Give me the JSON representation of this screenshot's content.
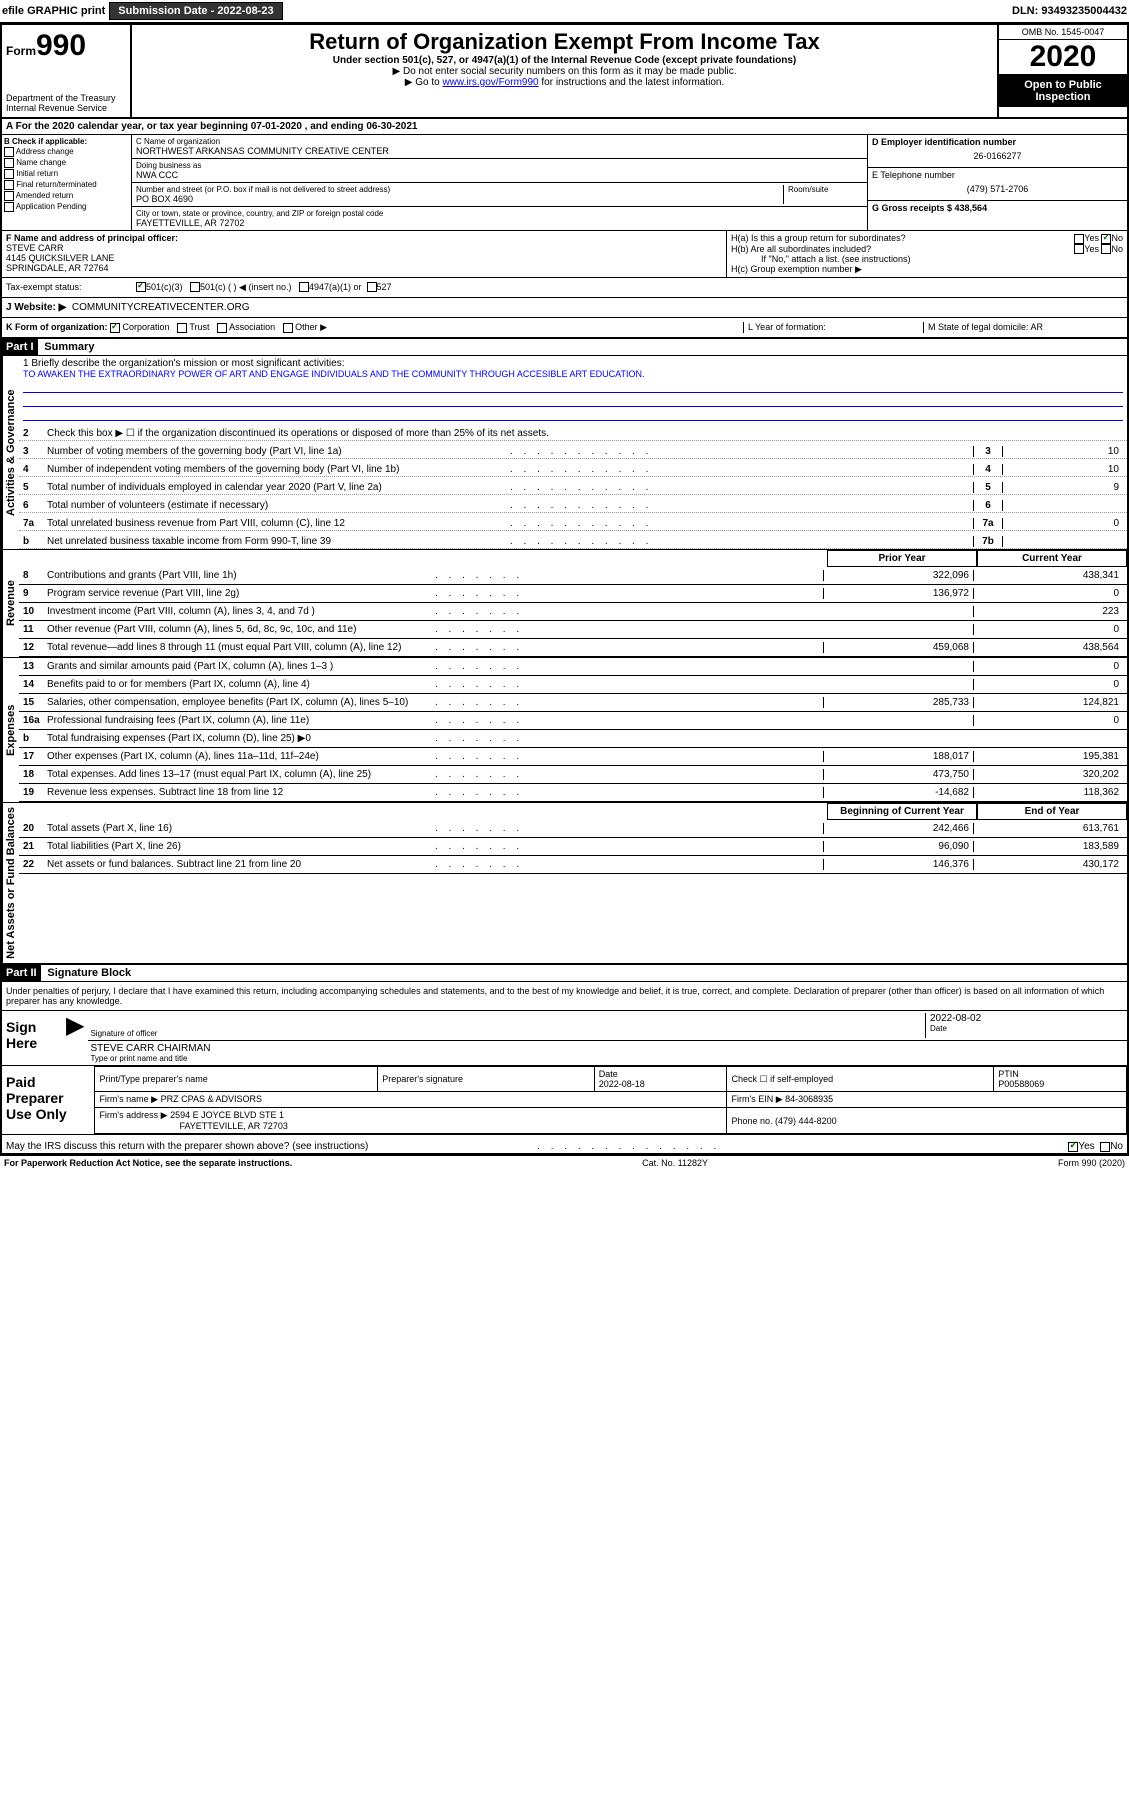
{
  "topbar": {
    "efile": "efile GRAPHIC print",
    "submission_label": "Submission Date - 2022-08-23",
    "dln": "DLN: 93493235004432"
  },
  "header": {
    "form_prefix": "Form",
    "form_number": "990",
    "title": "Return of Organization Exempt From Income Tax",
    "subtitle": "Under section 501(c), 527, or 4947(a)(1) of the Internal Revenue Code (except private foundations)",
    "note1": "▶ Do not enter social security numbers on this form as it may be made public.",
    "note2_prefix": "▶ Go to ",
    "note2_link": "www.irs.gov/Form990",
    "note2_suffix": " for instructions and the latest information.",
    "dept": "Department of the Treasury\nInternal Revenue Service",
    "omb": "OMB No. 1545-0047",
    "year": "2020",
    "open_public": "Open to Public Inspection"
  },
  "calyear": "A For the 2020 calendar year, or tax year beginning 07-01-2020    , and ending 06-30-2021",
  "section_b": {
    "label": "B Check if applicable:",
    "items": [
      "Address change",
      "Name change",
      "Initial return",
      "Final return/terminated",
      "Amended return",
      "Application Pending"
    ]
  },
  "section_c": {
    "name_label": "C Name of organization",
    "name": "NORTHWEST ARKANSAS COMMUNITY CREATIVE CENTER",
    "dba_label": "Doing business as",
    "dba": "NWA CCC",
    "addr_label": "Number and street (or P.O. box if mail is not delivered to street address)",
    "room_label": "Room/suite",
    "addr": "PO BOX 4690",
    "city_label": "City or town, state or province, country, and ZIP or foreign postal code",
    "city": "FAYETTEVILLE, AR  72702"
  },
  "section_d": {
    "ein_label": "D Employer identification number",
    "ein": "26-0166277",
    "phone_label": "E Telephone number",
    "phone": "(479) 571-2706",
    "gross_label": "G Gross receipts $ 438,564"
  },
  "section_f": {
    "label": "F Name and address of principal officer:",
    "name": "STEVE CARR",
    "addr1": "4145 QUICKSILVER LANE",
    "addr2": "SPRINGDALE, AR  72764"
  },
  "section_h": {
    "ha": "H(a)  Is this a group return for subordinates?",
    "hb": "H(b)  Are all subordinates included?",
    "hb_note": "If \"No,\" attach a list. (see instructions)",
    "hc": "H(c)  Group exemption number ▶",
    "yes": "Yes",
    "no": "No"
  },
  "tax_status": {
    "label": "Tax-exempt status:",
    "opt1": "501(c)(3)",
    "opt2": "501(c) (   ) ◀ (insert no.)",
    "opt3": "4947(a)(1) or",
    "opt4": "527"
  },
  "website": {
    "label": "J   Website: ▶",
    "value": "COMMUNITYCREATIVECENTER.ORG"
  },
  "kform": {
    "label": "K Form of organization:",
    "opts": [
      "Corporation",
      "Trust",
      "Association",
      "Other ▶"
    ],
    "l_label": "L Year of formation:",
    "m_label": "M State of legal domicile: AR"
  },
  "part1": {
    "header": "Part I",
    "title": "Summary",
    "vtext1": "Activities & Governance",
    "vtext2": "Revenue",
    "vtext3": "Expenses",
    "vtext4": "Net Assets or Fund Balances",
    "line1_label": "1   Briefly describe the organization's mission or most significant activities:",
    "line1_text": "TO AWAKEN THE EXTRAORDINARY POWER OF ART AND ENGAGE INDIVIDUALS AND THE COMMUNITY THROUGH ACCESIBLE ART EDUCATION.",
    "line2": "Check this box ▶ ☐  if the organization discontinued its operations or disposed of more than 25% of its net assets.",
    "lines_gov": [
      {
        "n": "3",
        "t": "Number of voting members of the governing body (Part VI, line 1a)",
        "box": "3",
        "v": "10"
      },
      {
        "n": "4",
        "t": "Number of independent voting members of the governing body (Part VI, line 1b)",
        "box": "4",
        "v": "10"
      },
      {
        "n": "5",
        "t": "Total number of individuals employed in calendar year 2020 (Part V, line 2a)",
        "box": "5",
        "v": "9"
      },
      {
        "n": "6",
        "t": "Total number of volunteers (estimate if necessary)",
        "box": "6",
        "v": ""
      },
      {
        "n": "7a",
        "t": "Total unrelated business revenue from Part VIII, column (C), line 12",
        "box": "7a",
        "v": "0"
      },
      {
        "n": "b",
        "t": "Net unrelated business taxable income from Form 990-T, line 39",
        "box": "7b",
        "v": ""
      }
    ],
    "col_headers": {
      "prior": "Prior Year",
      "current": "Current Year"
    },
    "col_headers2": {
      "prior": "Beginning of Current Year",
      "current": "End of Year"
    },
    "lines_rev": [
      {
        "n": "8",
        "t": "Contributions and grants (Part VIII, line 1h)",
        "p": "322,096",
        "c": "438,341"
      },
      {
        "n": "9",
        "t": "Program service revenue (Part VIII, line 2g)",
        "p": "136,972",
        "c": "0"
      },
      {
        "n": "10",
        "t": "Investment income (Part VIII, column (A), lines 3, 4, and 7d )",
        "p": "",
        "c": "223"
      },
      {
        "n": "11",
        "t": "Other revenue (Part VIII, column (A), lines 5, 6d, 8c, 9c, 10c, and 11e)",
        "p": "",
        "c": "0"
      },
      {
        "n": "12",
        "t": "Total revenue—add lines 8 through 11 (must equal Part VIII, column (A), line 12)",
        "p": "459,068",
        "c": "438,564"
      }
    ],
    "lines_exp": [
      {
        "n": "13",
        "t": "Grants and similar amounts paid (Part IX, column (A), lines 1–3 )",
        "p": "",
        "c": "0"
      },
      {
        "n": "14",
        "t": "Benefits paid to or for members (Part IX, column (A), line 4)",
        "p": "",
        "c": "0"
      },
      {
        "n": "15",
        "t": "Salaries, other compensation, employee benefits (Part IX, column (A), lines 5–10)",
        "p": "285,733",
        "c": "124,821"
      },
      {
        "n": "16a",
        "t": "Professional fundraising fees (Part IX, column (A), line 11e)",
        "p": "",
        "c": "0"
      },
      {
        "n": "b",
        "t": "Total fundraising expenses (Part IX, column (D), line 25) ▶0",
        "p": "—",
        "c": "—"
      },
      {
        "n": "17",
        "t": "Other expenses (Part IX, column (A), lines 11a–11d, 11f–24e)",
        "p": "188,017",
        "c": "195,381"
      },
      {
        "n": "18",
        "t": "Total expenses. Add lines 13–17 (must equal Part IX, column (A), line 25)",
        "p": "473,750",
        "c": "320,202"
      },
      {
        "n": "19",
        "t": "Revenue less expenses. Subtract line 18 from line 12",
        "p": "-14,682",
        "c": "118,362"
      }
    ],
    "lines_net": [
      {
        "n": "20",
        "t": "Total assets (Part X, line 16)",
        "p": "242,466",
        "c": "613,761"
      },
      {
        "n": "21",
        "t": "Total liabilities (Part X, line 26)",
        "p": "96,090",
        "c": "183,589"
      },
      {
        "n": "22",
        "t": "Net assets or fund balances. Subtract line 21 from line 20",
        "p": "146,376",
        "c": "430,172"
      }
    ]
  },
  "part2": {
    "header": "Part II",
    "title": "Signature Block",
    "perjury": "Under penalties of perjury, I declare that I have examined this return, including accompanying schedules and statements, and to the best of my knowledge and belief, it is true, correct, and complete. Declaration of preparer (other than officer) is based on all information of which preparer has any knowledge.",
    "sign_here": "Sign Here",
    "sig_officer": "Signature of officer",
    "date_label": "Date",
    "date_val": "2022-08-02",
    "officer_name": "STEVE CARR CHAIRMAN",
    "officer_name_label": "Type or print name and title",
    "paid_label": "Paid Preparer Use Only",
    "prep_name_label": "Print/Type preparer's name",
    "prep_sig_label": "Preparer's signature",
    "prep_date_label": "Date",
    "prep_date": "2022-08-18",
    "check_self": "Check ☐ if self-employed",
    "ptin_label": "PTIN",
    "ptin": "P00588069",
    "firm_name_label": "Firm's name    ▶",
    "firm_name": "PRZ CPAS & ADVISORS",
    "firm_ein_label": "Firm's EIN ▶",
    "firm_ein": "84-3068935",
    "firm_addr_label": "Firm's address ▶",
    "firm_addr1": "2594 E JOYCE BLVD STE 1",
    "firm_addr2": "FAYETTEVILLE, AR  72703",
    "firm_phone_label": "Phone no.",
    "firm_phone": "(479) 444-8200",
    "discuss": "May the IRS discuss this return with the preparer shown above? (see instructions)"
  },
  "footer": {
    "left": "For Paperwork Reduction Act Notice, see the separate instructions.",
    "mid": "Cat. No. 11282Y",
    "right": "Form 990 (2020)"
  }
}
